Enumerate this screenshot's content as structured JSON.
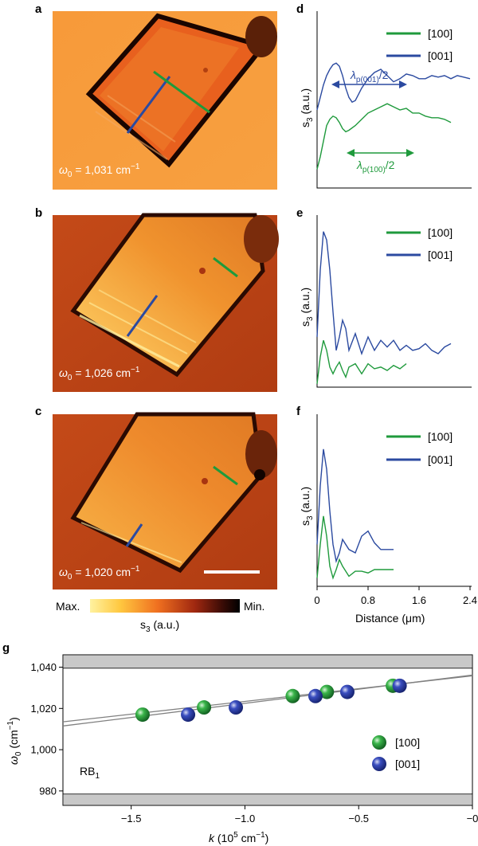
{
  "panels": {
    "a": "a",
    "b": "b",
    "c": "c",
    "d": "d",
    "e": "e",
    "f": "f",
    "g": "g"
  },
  "images": [
    {
      "label": "a",
      "omega_prefix": "ω",
      "omega_sub": "0",
      "omega_value": " = 1,031 cm",
      "omega_sup": "−1"
    },
    {
      "label": "b",
      "omega_prefix": "ω",
      "omega_sub": "0",
      "omega_value": " = 1,026 cm",
      "omega_sup": "−1"
    },
    {
      "label": "c",
      "omega_prefix": "ω",
      "omega_sub": "0",
      "omega_value": " = 1,020 cm",
      "omega_sup": "−1"
    }
  ],
  "colorbar": {
    "max_label": "Max.",
    "min_label": "Min.",
    "label_main": "s",
    "label_sub": "3",
    "label_unit": " (a.u.)"
  },
  "colors": {
    "green": "#1f9a3c",
    "blue": "#2b4aa0",
    "gray_band": "#c8c8c8",
    "fit_line": "#808080"
  },
  "profile_axis": {
    "ylabel_main": "s",
    "ylabel_sub": "3",
    "ylabel_unit": " (a.u.)",
    "xlabel": "Distance (μm)",
    "xticks": [
      "0",
      "0.8",
      "1.6",
      "2.4"
    ],
    "xlim": [
      0,
      2.4
    ]
  },
  "legend": {
    "green": "[100]",
    "blue": "[001]"
  },
  "annotations": {
    "blue_lambda": "λ",
    "blue_sub": "p(001)",
    "blue_rest": "/2",
    "green_lambda": "λ",
    "green_sub": "p(100)",
    "green_rest": "/2"
  },
  "chart_data": [
    {
      "type": "line",
      "panel": "d",
      "xlim": [
        0,
        2.4
      ],
      "series": [
        {
          "name": "[001]",
          "x": [
            0,
            0.05,
            0.1,
            0.15,
            0.2,
            0.25,
            0.3,
            0.35,
            0.4,
            0.45,
            0.5,
            0.55,
            0.6,
            0.65,
            0.7,
            0.8,
            0.9,
            1.0,
            1.1,
            1.2,
            1.3,
            1.4,
            1.5,
            1.6,
            1.7,
            1.8,
            1.9,
            2.0,
            2.1,
            2.2,
            2.3,
            2.4
          ],
          "y": [
            0.5,
            0.58,
            0.66,
            0.72,
            0.76,
            0.79,
            0.8,
            0.78,
            0.72,
            0.64,
            0.58,
            0.55,
            0.56,
            0.6,
            0.64,
            0.7,
            0.74,
            0.76,
            0.72,
            0.68,
            0.7,
            0.73,
            0.72,
            0.7,
            0.7,
            0.72,
            0.71,
            0.72,
            0.7,
            0.72,
            0.71,
            0.7
          ]
        },
        {
          "name": "[100]",
          "x": [
            0,
            0.05,
            0.1,
            0.15,
            0.2,
            0.25,
            0.3,
            0.35,
            0.4,
            0.45,
            0.5,
            0.6,
            0.7,
            0.8,
            0.9,
            1.0,
            1.1,
            1.2,
            1.3,
            1.4,
            1.5,
            1.6,
            1.7,
            1.8,
            1.9,
            2.0,
            2.1
          ],
          "y": [
            0.12,
            0.2,
            0.3,
            0.4,
            0.44,
            0.46,
            0.45,
            0.42,
            0.38,
            0.36,
            0.37,
            0.4,
            0.44,
            0.48,
            0.5,
            0.52,
            0.54,
            0.52,
            0.5,
            0.51,
            0.48,
            0.48,
            0.46,
            0.45,
            0.45,
            0.44,
            0.42
          ]
        }
      ]
    },
    {
      "type": "line",
      "panel": "e",
      "xlim": [
        0,
        2.4
      ],
      "series": [
        {
          "name": "[001]",
          "x": [
            0,
            0.05,
            0.1,
            0.15,
            0.2,
            0.25,
            0.3,
            0.35,
            0.4,
            0.45,
            0.5,
            0.6,
            0.7,
            0.8,
            0.9,
            1.0,
            1.1,
            1.2,
            1.3,
            1.4,
            1.5,
            1.6,
            1.7,
            1.8,
            1.9,
            2.0,
            2.1
          ],
          "y": [
            0.3,
            0.7,
            0.93,
            0.88,
            0.7,
            0.45,
            0.22,
            0.3,
            0.4,
            0.35,
            0.22,
            0.32,
            0.2,
            0.3,
            0.22,
            0.28,
            0.24,
            0.28,
            0.22,
            0.25,
            0.22,
            0.23,
            0.26,
            0.22,
            0.2,
            0.24,
            0.26
          ]
        },
        {
          "name": "[100]",
          "x": [
            0,
            0.05,
            0.1,
            0.15,
            0.2,
            0.25,
            0.3,
            0.35,
            0.4,
            0.45,
            0.5,
            0.6,
            0.7,
            0.8,
            0.9,
            1.0,
            1.1,
            1.2,
            1.3,
            1.4
          ],
          "y": [
            0.02,
            0.18,
            0.28,
            0.22,
            0.12,
            0.08,
            0.12,
            0.15,
            0.1,
            0.06,
            0.12,
            0.14,
            0.08,
            0.14,
            0.11,
            0.12,
            0.1,
            0.13,
            0.11,
            0.14
          ]
        }
      ]
    },
    {
      "type": "line",
      "panel": "f",
      "xlim": [
        0,
        2.4
      ],
      "series": [
        {
          "name": "[001]",
          "x": [
            0,
            0.05,
            0.1,
            0.15,
            0.2,
            0.25,
            0.3,
            0.35,
            0.4,
            0.5,
            0.6,
            0.7,
            0.8,
            0.9,
            1.0,
            1.1,
            1.2
          ],
          "y": [
            0.25,
            0.6,
            0.82,
            0.7,
            0.45,
            0.25,
            0.15,
            0.2,
            0.28,
            0.22,
            0.2,
            0.3,
            0.33,
            0.26,
            0.22,
            0.22,
            0.22
          ]
        },
        {
          "name": "[100]",
          "x": [
            0,
            0.05,
            0.1,
            0.15,
            0.2,
            0.25,
            0.3,
            0.35,
            0.4,
            0.5,
            0.6,
            0.7,
            0.8,
            0.9,
            1.0,
            1.1,
            1.2
          ],
          "y": [
            0.05,
            0.25,
            0.42,
            0.3,
            0.12,
            0.05,
            0.1,
            0.16,
            0.12,
            0.06,
            0.09,
            0.09,
            0.08,
            0.1,
            0.1,
            0.1,
            0.1
          ]
        }
      ]
    },
    {
      "type": "scatter",
      "panel": "g",
      "xlabel_main": "k",
      "xlabel_unit": " (10",
      "xlabel_sup": "5",
      "xlabel_tail": " cm",
      "xlabel_sup2": "−1",
      "xlabel_close": ")",
      "ylabel_main": "ω",
      "ylabel_sub": "0",
      "ylabel_unit": " (cm",
      "ylabel_sup": "−1",
      "ylabel_close": ")",
      "xlim": [
        -1.8,
        0
      ],
      "ylim": [
        973,
        1046
      ],
      "xticks": [
        -1.5,
        -1.0,
        -0.5,
        0
      ],
      "xtick_labels": [
        "−1.5",
        "−1.0",
        "−0.5",
        "−0"
      ],
      "yticks": [
        980,
        1000,
        1020,
        1040
      ],
      "ytick_labels": [
        "980",
        "1,000",
        "1,020",
        "1,040"
      ],
      "bands": [
        {
          "from": 973,
          "to": 978.5
        },
        {
          "from": 1039.5,
          "to": 1046
        }
      ],
      "band_label_main": "RB",
      "band_label_sub": "1",
      "series": [
        {
          "name": "[100]",
          "x": [
            -1.45,
            -1.18,
            -0.79,
            -0.64,
            -0.35
          ],
          "y": [
            1017,
            1020.5,
            1026,
            1028,
            1031
          ]
        },
        {
          "name": "[001]",
          "x": [
            -1.25,
            -1.04,
            -0.69,
            -0.55,
            -0.32
          ],
          "y": [
            1017,
            1020.5,
            1026,
            1028,
            1031
          ]
        }
      ],
      "fits": [
        {
          "x": [
            -1.8,
            0
          ],
          "y": [
            1013.5,
            1035.8
          ]
        },
        {
          "x": [
            -1.8,
            0
          ],
          "y": [
            1011.5,
            1036.2
          ]
        }
      ]
    }
  ]
}
